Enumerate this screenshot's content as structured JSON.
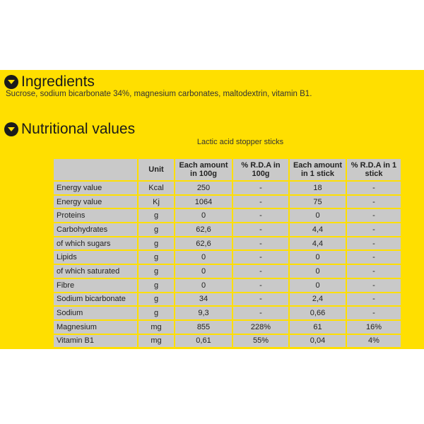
{
  "ingredients": {
    "title": "Ingredients",
    "text": "Sucrose, sodium bicarbonate 34%, magnesium carbonates, maltodextrin, vitamin B1."
  },
  "nutrition": {
    "title": "Nutritional values",
    "caption": "Lactic acid stopper sticks",
    "headers": [
      "",
      "Unit",
      "Each amount in 100g",
      "% R.D.A in 100g",
      "Each amount in 1 stick",
      "% R.D.A in 1 stick"
    ],
    "rows": [
      [
        "Energy value",
        "Kcal",
        "250",
        "-",
        "18",
        "-"
      ],
      [
        "Energy value",
        "Kj",
        "1064",
        "-",
        "75",
        "-"
      ],
      [
        "Proteins",
        "g",
        "0",
        "-",
        "0",
        "-"
      ],
      [
        "Carbohydrates",
        "g",
        "62,6",
        "-",
        "4,4",
        "-"
      ],
      [
        "of which sugars",
        "g",
        "62,6",
        "-",
        "4,4",
        "-"
      ],
      [
        "Lipids",
        "g",
        "0",
        "-",
        "0",
        "-"
      ],
      [
        "of which saturated",
        "g",
        "0",
        "-",
        "0",
        "-"
      ],
      [
        "Fibre",
        "g",
        "0",
        "-",
        "0",
        "-"
      ],
      [
        "Sodium bicarbonate",
        "g",
        "34",
        "-",
        "2,4",
        "-"
      ],
      [
        "Sodium",
        "g",
        "9,3",
        "-",
        "0,66",
        "-"
      ],
      [
        "Magnesium",
        "mg",
        "855",
        "228%",
        "61",
        "16%"
      ],
      [
        "Vitamin B1",
        "mg",
        "0,61",
        "55%",
        "0,04",
        "4%"
      ]
    ]
  },
  "icons": {
    "heading_bullet": "chevron-down-circle-icon"
  },
  "colors": {
    "background": "#FFDF00",
    "cell": "#C9C9C9",
    "bullet": "#1B1B1B"
  }
}
